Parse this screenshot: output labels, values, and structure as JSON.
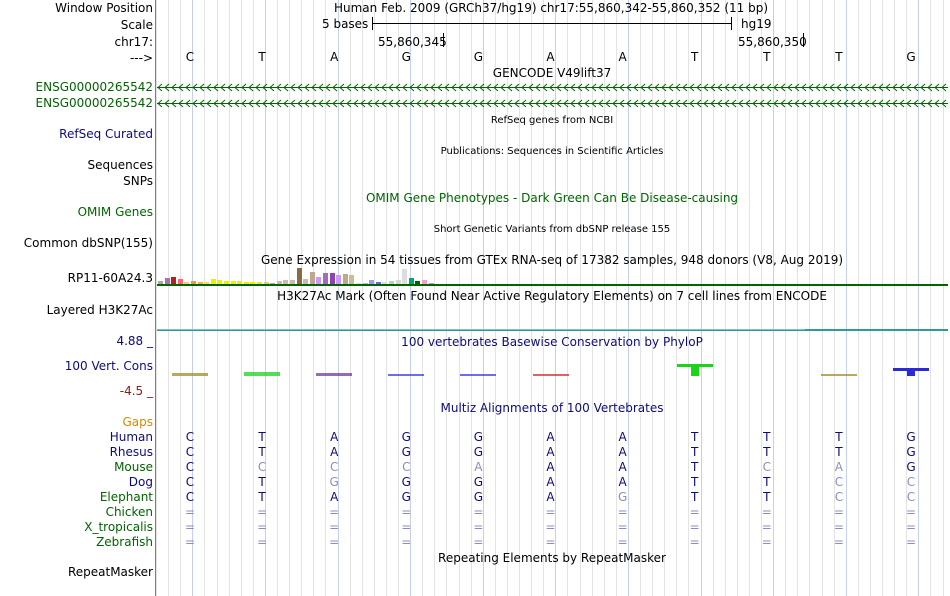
{
  "colors": {
    "gene_green": "#006400",
    "refseq_navy": "#0c0c78",
    "omim_green": "#006400",
    "cons_navy": "#0c0c78",
    "cons_min_red": "#8b1a1a",
    "gaps_orange": "#d28a00",
    "species_navy": "#0c0c78",
    "species_green": "#006400",
    "grid_light": "#e3e3e3",
    "grid_blue": "#c6d0ee",
    "h3k27ac_teal": "#2f9b93"
  },
  "labels": {
    "window_position": "Window Position",
    "scale": "Scale",
    "chrom": "chr17:",
    "arrow": "--->",
    "gene1": "ENSG00000265542",
    "gene2": "ENSG00000265542",
    "refseq": "RefSeq Curated",
    "sequences": "Sequences",
    "snps": "SNPs",
    "omim": "OMIM Genes",
    "dbsnp": "Common dbSNP(155)",
    "gtex": "RP11-60A24.3",
    "h3k27ac": "Layered H3K27Ac",
    "cons_max": "4.88 _",
    "cons": "100 Vert. Cons",
    "cons_min": "-4.5 _",
    "gaps": "Gaps",
    "repeatmasker": "RepeatMasker"
  },
  "header": {
    "position_title": "Human Feb. 2009 (GRCh37/hg19)   chr17:55,860,342-55,860,352 (11 bp)",
    "scale_label": "5 bases",
    "assembly": "hg19",
    "coord_left": "55,860,345",
    "coord_right": "55,860,350"
  },
  "sequence": [
    "C",
    "T",
    "A",
    "G",
    "G",
    "A",
    "A",
    "T",
    "T",
    "T",
    "G"
  ],
  "tracks": {
    "gencode": "GENCODE V49lift37",
    "refseq": "RefSeq genes from NCBI",
    "publications": "Publications: Sequences in Scientific Articles",
    "omim": "OMIM Gene Phenotypes - Dark Green Can Be Disease-causing",
    "dbsnp": "Short Genetic Variants from dbSNP release 155",
    "gtex": "Gene Expression in 54 tissues from GTEx RNA-seq of 17382 samples, 948 donors (V8, Aug 2019)",
    "h3k27ac": "H3K27Ac Mark (Often Found Near Active Regulatory Elements) on 7 cell lines from ENCODE",
    "phylop": "100 vertebrates Basewise Conservation by PhyloP",
    "multiz": "Multiz Alignments of 100 Vertebrates",
    "repeatmasker": "Repeating Elements by RepeatMasker"
  },
  "species": [
    {
      "name": "Human",
      "bases": [
        "C",
        "T",
        "A",
        "G",
        "G",
        "A",
        "A",
        "T",
        "T",
        "T",
        "G"
      ],
      "faded": [
        false,
        false,
        false,
        false,
        false,
        false,
        false,
        false,
        false,
        false,
        false
      ]
    },
    {
      "name": "Rhesus",
      "bases": [
        "C",
        "T",
        "A",
        "G",
        "G",
        "A",
        "A",
        "T",
        "T",
        "T",
        "G"
      ],
      "faded": [
        false,
        false,
        false,
        false,
        false,
        false,
        false,
        false,
        false,
        false,
        false
      ]
    },
    {
      "name": "Mouse",
      "bases": [
        "C",
        "C",
        "C",
        "C",
        "A",
        "A",
        "A",
        "T",
        "C",
        "A",
        "G"
      ],
      "faded": [
        false,
        true,
        true,
        true,
        true,
        false,
        false,
        false,
        true,
        true,
        false
      ]
    },
    {
      "name": "Dog",
      "bases": [
        "C",
        "T",
        "G",
        "G",
        "G",
        "A",
        "A",
        "T",
        "T",
        "C",
        "C"
      ],
      "faded": [
        false,
        false,
        true,
        false,
        false,
        false,
        false,
        false,
        false,
        true,
        true
      ]
    },
    {
      "name": "Elephant",
      "bases": [
        "C",
        "T",
        "A",
        "G",
        "G",
        "A",
        "G",
        "T",
        "T",
        "C",
        "C"
      ],
      "faded": [
        false,
        false,
        false,
        false,
        false,
        false,
        true,
        false,
        false,
        true,
        true
      ]
    },
    {
      "name": "Chicken",
      "bases": [
        "=",
        "=",
        "=",
        "=",
        "=",
        "=",
        "=",
        "=",
        "=",
        "=",
        "="
      ],
      "faded": [
        true,
        true,
        true,
        true,
        true,
        true,
        true,
        true,
        true,
        true,
        true
      ]
    },
    {
      "name": "X_tropicalis",
      "bases": [
        "=",
        "=",
        "=",
        "=",
        "=",
        "=",
        "=",
        "=",
        "=",
        "=",
        "="
      ],
      "faded": [
        true,
        true,
        true,
        true,
        true,
        true,
        true,
        true,
        true,
        true,
        true
      ]
    },
    {
      "name": "Zebrafish",
      "bases": [
        "=",
        "=",
        "=",
        "=",
        "=",
        "=",
        "=",
        "=",
        "=",
        "=",
        "="
      ],
      "faded": [
        true,
        true,
        true,
        true,
        true,
        true,
        true,
        true,
        true,
        true,
        true
      ]
    }
  ],
  "gtex_bars": [
    {
      "color": "#a8a8a8",
      "value": 0.18
    },
    {
      "color": "#b46fa9",
      "value": 0.38
    },
    {
      "color": "#b22222",
      "value": 0.42
    },
    {
      "color": "#ff6666",
      "value": 0.3
    },
    {
      "color": "#ffcc66",
      "value": 0.12
    },
    {
      "color": "#ee9944",
      "value": 0.16
    },
    {
      "color": "#ffaa44",
      "value": 0.1
    },
    {
      "color": "#eedd55",
      "value": 0.14
    },
    {
      "color": "#eeee00",
      "value": 0.28
    },
    {
      "color": "#eeee00",
      "value": 0.24
    },
    {
      "color": "#eeee00",
      "value": 0.2
    },
    {
      "color": "#eeee00",
      "value": 0.18
    },
    {
      "color": "#eeee00",
      "value": 0.16
    },
    {
      "color": "#eeee00",
      "value": 0.14
    },
    {
      "color": "#eeee00",
      "value": 0.12
    },
    {
      "color": "#eeee00",
      "value": 0.1
    },
    {
      "color": "#ddcc88",
      "value": 0.14
    },
    {
      "color": "#aaaaaa",
      "value": 0.06
    },
    {
      "color": "#ccbbaa",
      "value": 0.2
    },
    {
      "color": "#ccbbaa",
      "value": 0.22
    },
    {
      "color": "#ccbbaa",
      "value": 0.24
    },
    {
      "color": "#8b6c42",
      "value": 0.92
    },
    {
      "color": "#ccbbaa",
      "value": 0.28
    },
    {
      "color": "#c2a58a",
      "value": 0.7
    },
    {
      "color": "#cc99ff",
      "value": 0.4
    },
    {
      "color": "#a569bd",
      "value": 0.62
    },
    {
      "color": "#8e44ad",
      "value": 0.66
    },
    {
      "color": "#cc99ff",
      "value": 0.5
    },
    {
      "color": "#bbaa88",
      "value": 0.56
    },
    {
      "color": "#ccbb99",
      "value": 0.5
    },
    {
      "color": "#dddddd",
      "value": 0.04
    },
    {
      "color": "#bbbbbb",
      "value": 0.06
    },
    {
      "color": "#9999ff",
      "value": 0.22
    },
    {
      "color": "#6666dd",
      "value": 0.12
    },
    {
      "color": "#dddddd",
      "value": 0.1
    },
    {
      "color": "#aaddaa",
      "value": 0.18
    },
    {
      "color": "#ccddcc",
      "value": 0.24
    },
    {
      "color": "#dddddd",
      "value": 0.9
    },
    {
      "color": "#00aa66",
      "value": 0.38
    },
    {
      "color": "#006600",
      "value": 0.18
    },
    {
      "color": "#ff99cc",
      "value": 0.22
    },
    {
      "color": "#aaaaaa",
      "value": 0.08
    }
  ],
  "phylop": [
    {
      "pos": 0,
      "value": 0.14,
      "color": "#a08c2a"
    },
    {
      "pos": 1,
      "value": 0.22,
      "color": "#1cd11c"
    },
    {
      "pos": 2,
      "value": 0.14,
      "color": "#6c3c9a"
    },
    {
      "pos": 3,
      "value": 0.12,
      "color": "#3c3ce0"
    },
    {
      "pos": 4,
      "value": 0.12,
      "color": "#3c3ce0"
    },
    {
      "pos": 5,
      "value": 0.08,
      "color": "#d03030"
    },
    {
      "pos": 7,
      "value": 0.6,
      "color": "#1ad41a"
    },
    {
      "pos": 9,
      "value": 0.08,
      "color": "#a08c2a"
    },
    {
      "pos": 10,
      "value": 0.38,
      "color": "#2b2bd6"
    }
  ]
}
